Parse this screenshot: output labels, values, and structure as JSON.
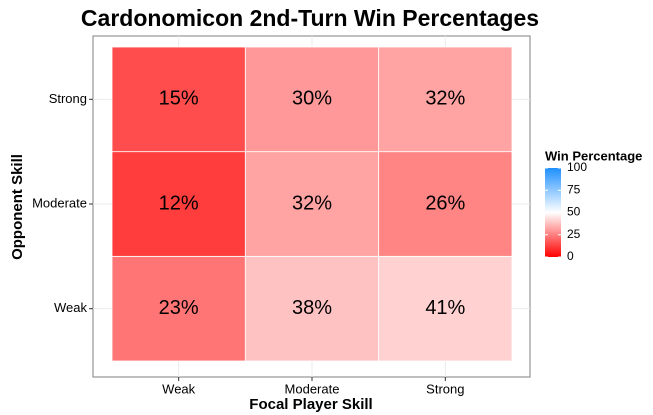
{
  "chart_data": {
    "type": "heatmap",
    "title": "Cardonomicon 2nd-Turn Win Percentages",
    "x_label": "Focal Player Skill",
    "y_label": "Opponent Skill",
    "x_categories": [
      "Weak",
      "Moderate",
      "Strong"
    ],
    "y_categories": [
      "Weak",
      "Moderate",
      "Strong"
    ],
    "values": [
      [
        23,
        38,
        41
      ],
      [
        12,
        32,
        26
      ],
      [
        15,
        30,
        32
      ]
    ],
    "value_labels": [
      [
        "23%",
        "38%",
        "41%"
      ],
      [
        "12%",
        "32%",
        "26%"
      ],
      [
        "15%",
        "30%",
        "32%"
      ]
    ],
    "legend_title": "Win Percentage",
    "color_lim": [
      0,
      100
    ],
    "color_ticks": [
      0,
      25,
      50,
      75,
      100
    ],
    "color_scale": [
      [
        0,
        "#ff0000"
      ],
      [
        50,
        "#ffffff"
      ],
      [
        100,
        "#1e90ff"
      ]
    ]
  }
}
